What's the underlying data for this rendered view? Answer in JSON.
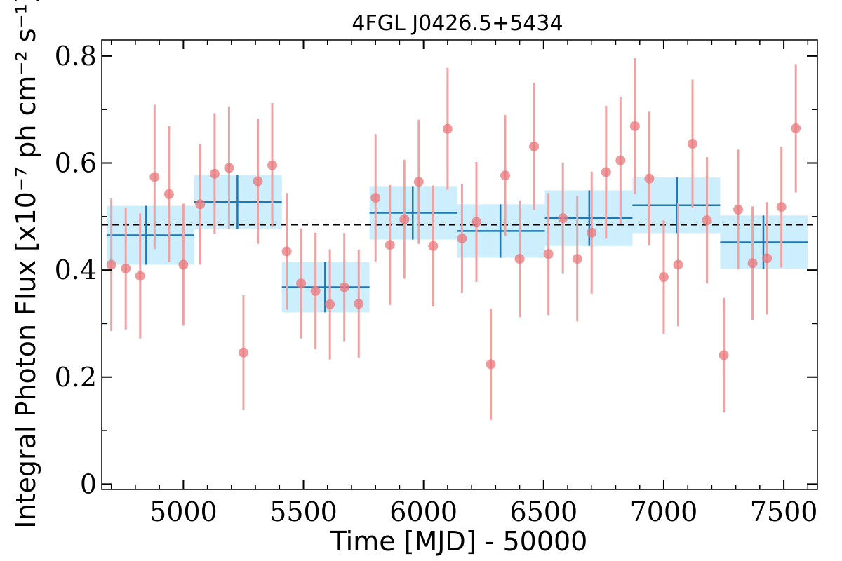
{
  "chart_data": {
    "type": "scatter",
    "title": "4FGL J0426.5+5434",
    "xlabel": "Time [MJD] - 50000",
    "ylabel": "Integral Photon Flux [x10⁻⁷ ph cm⁻² s⁻¹]",
    "xlim": [
      4660,
      7640
    ],
    "ylim": [
      -0.01,
      0.83
    ],
    "xticks": [
      5000,
      5500,
      6000,
      6500,
      7000,
      7500
    ],
    "xtick_labels": [
      "5000",
      "5500",
      "6000",
      "6500",
      "7000",
      "7500"
    ],
    "yticks": [
      0,
      0.2,
      0.4,
      0.6,
      0.8
    ],
    "ytick_labels": [
      "0",
      "0.2",
      "0.4",
      "0.6",
      "0.8"
    ],
    "mean_flux": 0.485,
    "colors": {
      "points": "#e8777b",
      "error_bars": "#eda3a4",
      "bins_fill": "#cdeefc",
      "bins_line": "#1f77b4",
      "mean_line": "#000000"
    },
    "series": [
      {
        "kind": "monthly_points",
        "x": [
          4700,
          4760,
          4820,
          4880,
          4940,
          5000,
          5070,
          5130,
          5190,
          5250,
          5310,
          5370,
          5430,
          5490,
          5550,
          5610,
          5670,
          5730,
          5800,
          5860,
          5920,
          5980,
          6040,
          6100,
          6160,
          6220,
          6280,
          6340,
          6400,
          6460,
          6520,
          6580,
          6640,
          6700,
          6760,
          6820,
          6880,
          6940,
          7000,
          7060,
          7120,
          7180,
          7250,
          7310,
          7370,
          7430,
          7490,
          7550
        ],
        "y": [
          0.41,
          0.403,
          0.389,
          0.574,
          0.542,
          0.41,
          0.523,
          0.58,
          0.591,
          0.246,
          0.566,
          0.596,
          0.435,
          0.375,
          0.361,
          0.336,
          0.368,
          0.337,
          0.535,
          0.447,
          0.495,
          0.565,
          0.445,
          0.664,
          0.459,
          0.49,
          0.224,
          0.577,
          0.421,
          0.631,
          0.43,
          0.497,
          0.421,
          0.47,
          0.583,
          0.605,
          0.669,
          0.571,
          0.387,
          0.41,
          0.636,
          0.493,
          0.241,
          0.513,
          0.413,
          0.422,
          0.518,
          0.665
        ],
        "y_err": [
          0.124,
          0.114,
          0.117,
          0.135,
          0.127,
          0.114,
          0.113,
          0.113,
          0.115,
          0.107,
          0.117,
          0.116,
          0.109,
          0.103,
          0.109,
          0.103,
          0.101,
          0.101,
          0.119,
          0.112,
          0.111,
          0.116,
          0.113,
          0.114,
          0.102,
          0.112,
          0.104,
          0.113,
          0.109,
          0.119,
          0.114,
          0.104,
          0.117,
          0.114,
          0.124,
          0.119,
          0.127,
          0.125,
          0.106,
          0.115,
          0.12,
          0.118,
          0.107,
          0.112,
          0.106,
          0.105,
          0.113,
          0.12
        ]
      },
      {
        "kind": "yearly_bins",
        "x_start": [
          4680,
          5045,
          5410,
          5775,
          6140,
          6505,
          6870,
          7235
        ],
        "x_end": [
          5045,
          5410,
          5775,
          6140,
          6505,
          6870,
          7235,
          7600
        ],
        "x_center": [
          4845,
          5225,
          5590,
          5955,
          6320,
          6690,
          7055,
          7415
        ],
        "y": [
          0.465,
          0.527,
          0.368,
          0.507,
          0.473,
          0.497,
          0.521,
          0.452
        ],
        "y_err": [
          0.055,
          0.05,
          0.047,
          0.05,
          0.05,
          0.052,
          0.052,
          0.05
        ]
      }
    ]
  }
}
